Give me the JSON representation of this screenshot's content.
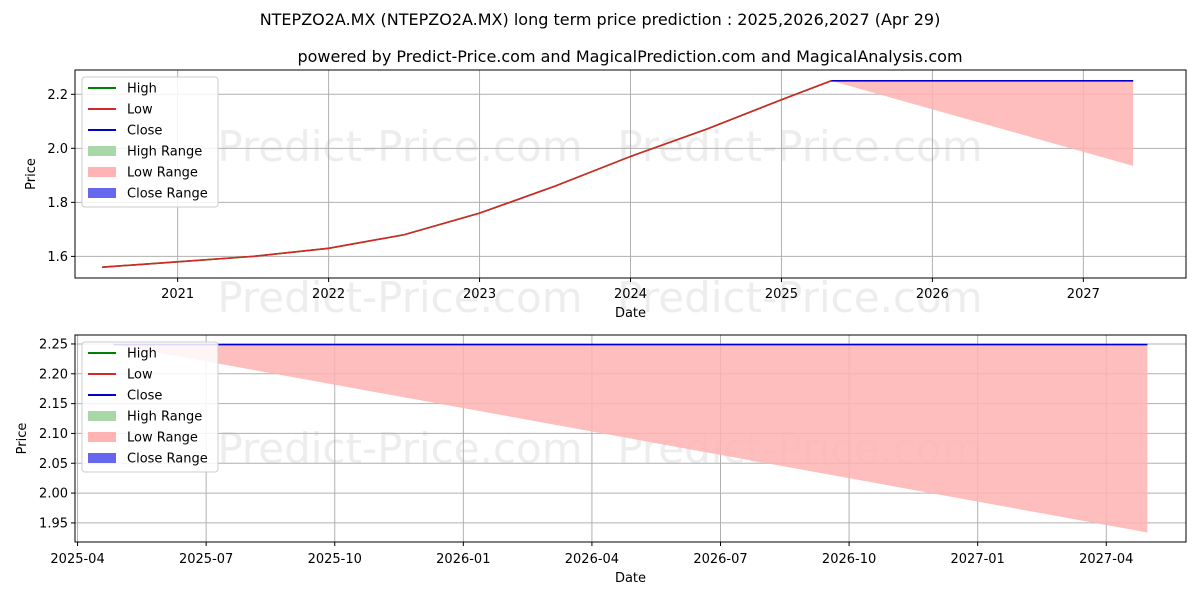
{
  "title": "NTEPZO2A.MX (NTEPZO2A.MX) long term price prediction : 2025,2026,2027 (Apr 29)",
  "subtitle": "powered by Predict-Price.com and MagicalPrediction.com and MagicalAnalysis.com",
  "watermark": "Predict-Price.com",
  "colors": {
    "high": "#008000",
    "low": "#d62728",
    "close": "#0000cc",
    "high_range": "#a8d8a8",
    "low_range": "#ffb3b3",
    "close_range": "#6666ee",
    "grid": "#b0b0b0"
  },
  "legend": {
    "high": "High",
    "low": "Low",
    "close": "Close",
    "high_range": "High Range",
    "low_range": "Low Range",
    "close_range": "Close Range"
  },
  "chart_data": [
    {
      "type": "line",
      "xlabel": "Date",
      "ylabel": "Price",
      "xlim": [
        2020.32,
        2027.68
      ],
      "ylim": [
        1.52,
        2.29
      ],
      "xticks": [
        {
          "v": 2021,
          "label": "2021"
        },
        {
          "v": 2022,
          "label": "2022"
        },
        {
          "v": 2023,
          "label": "2023"
        },
        {
          "v": 2024,
          "label": "2024"
        },
        {
          "v": 2025,
          "label": "2025"
        },
        {
          "v": 2026,
          "label": "2026"
        },
        {
          "v": 2027,
          "label": "2027"
        }
      ],
      "yticks": [
        {
          "v": 1.6,
          "label": "1.6"
        },
        {
          "v": 1.8,
          "label": "1.8"
        },
        {
          "v": 2.0,
          "label": "2.0"
        },
        {
          "v": 2.2,
          "label": "2.2"
        }
      ],
      "legend_position": "upper-left",
      "grid": true,
      "series": [
        {
          "name": "High",
          "key": "high",
          "x": [
            2020.5,
            2021.0,
            2021.5,
            2022.0,
            2022.5,
            2023.0,
            2023.5,
            2024.0,
            2024.5,
            2025.0,
            2025.33
          ],
          "y": [
            1.56,
            1.58,
            1.6,
            1.63,
            1.68,
            1.76,
            1.86,
            1.97,
            2.07,
            2.18,
            2.25
          ]
        },
        {
          "name": "Low",
          "key": "low",
          "x": [
            2020.5,
            2021.0,
            2021.5,
            2022.0,
            2022.5,
            2023.0,
            2023.5,
            2024.0,
            2024.5,
            2025.0,
            2025.33
          ],
          "y": [
            1.56,
            1.58,
            1.6,
            1.63,
            1.68,
            1.76,
            1.86,
            1.97,
            2.07,
            2.18,
            2.25
          ]
        },
        {
          "name": "Close",
          "key": "close",
          "x": [
            2025.33,
            2027.33
          ],
          "y": [
            2.25,
            2.25
          ]
        }
      ],
      "low_range": {
        "x": [
          2025.33,
          2027.33
        ],
        "upper": [
          2.25,
          2.25
        ],
        "lower": [
          2.25,
          1.935
        ]
      }
    },
    {
      "type": "line",
      "xlabel": "Date",
      "ylabel": "Price",
      "xlim": [
        2025.245,
        2027.405
      ],
      "ylim": [
        1.918,
        2.265
      ],
      "xticks": [
        {
          "v": 2025.25,
          "label": "2025-04"
        },
        {
          "v": 2025.5,
          "label": "2025-07"
        },
        {
          "v": 2025.75,
          "label": "2025-10"
        },
        {
          "v": 2026.0,
          "label": "2026-01"
        },
        {
          "v": 2026.25,
          "label": "2026-04"
        },
        {
          "v": 2026.5,
          "label": "2026-07"
        },
        {
          "v": 2026.75,
          "label": "2026-10"
        },
        {
          "v": 2027.0,
          "label": "2027-01"
        },
        {
          "v": 2027.25,
          "label": "2027-04"
        }
      ],
      "yticks": [
        {
          "v": 1.95,
          "label": "1.95"
        },
        {
          "v": 2.0,
          "label": "2.00"
        },
        {
          "v": 2.05,
          "label": "2.05"
        },
        {
          "v": 2.1,
          "label": "2.10"
        },
        {
          "v": 2.15,
          "label": "2.15"
        },
        {
          "v": 2.2,
          "label": "2.20"
        },
        {
          "v": 2.25,
          "label": "2.25"
        }
      ],
      "legend_position": "upper-left",
      "grid": true,
      "series": [
        {
          "name": "Close",
          "key": "close",
          "x": [
            2025.32,
            2027.33
          ],
          "y": [
            2.249,
            2.249
          ]
        }
      ],
      "low_range": {
        "x": [
          2025.32,
          2027.33
        ],
        "upper": [
          2.249,
          2.249
        ],
        "lower": [
          2.249,
          1.934
        ]
      }
    }
  ]
}
